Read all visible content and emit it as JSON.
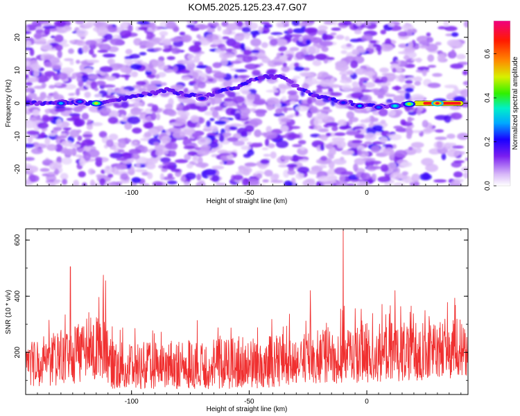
{
  "title": "KOM5.2025.125.23.47.G07",
  "chart_data": [
    {
      "type": "heatmap",
      "xlabel": "Height of straight line (km)",
      "ylabel": "Frequency (Hz)",
      "xlim": [
        -145,
        43
      ],
      "ylim": [
        -25,
        25
      ],
      "x_ticks": [
        -100,
        -50,
        0
      ],
      "y_ticks": [
        -20,
        -10,
        0,
        10,
        20
      ],
      "colorbar": {
        "label": "Normalized spectral amplitude",
        "range": [
          0.0,
          0.75
        ],
        "ticks": [
          0.0,
          0.2,
          0.4,
          0.6
        ]
      },
      "ridge": [
        {
          "x": -145,
          "y": 0.0
        },
        {
          "x": -130,
          "y": 0.3
        },
        {
          "x": -120,
          "y": 0.2
        },
        {
          "x": -112,
          "y": 0.0
        },
        {
          "x": -100,
          "y": 2.0
        },
        {
          "x": -85,
          "y": 4.0
        },
        {
          "x": -70,
          "y": 1.8
        },
        {
          "x": -55,
          "y": 5.0
        },
        {
          "x": -45,
          "y": 8.0
        },
        {
          "x": -35,
          "y": 8.0
        },
        {
          "x": -28,
          "y": 4.0
        },
        {
          "x": -20,
          "y": 2.0
        },
        {
          "x": -10,
          "y": 0.5
        },
        {
          "x": 0,
          "y": -0.8
        },
        {
          "x": 10,
          "y": -1.0
        },
        {
          "x": 20,
          "y": 0.0
        },
        {
          "x": 30,
          "y": 0.0
        },
        {
          "x": 41,
          "y": 0.0
        }
      ],
      "peaks": [
        {
          "x": -130,
          "y": 0.0,
          "amp": 0.3
        },
        {
          "x": -122,
          "y": 0.5,
          "amp": 0.25
        },
        {
          "x": -115,
          "y": 0.0,
          "amp": 0.5
        },
        {
          "x": -70,
          "y": 1.5,
          "amp": 0.22
        },
        {
          "x": -10,
          "y": 0.2,
          "amp": 0.22
        },
        {
          "x": -3,
          "y": -0.8,
          "amp": 0.28
        },
        {
          "x": 5,
          "y": -1.2,
          "amp": 0.25
        },
        {
          "x": 12,
          "y": -0.8,
          "amp": 0.35
        },
        {
          "x": 18,
          "y": -0.2,
          "amp": 0.48
        },
        {
          "x": 30,
          "y": 0.0,
          "amp": 0.7
        }
      ]
    },
    {
      "type": "line",
      "xlabel": "Height of straight line (km)",
      "ylabel": "SNR (10 * v/v)",
      "xlim": [
        -145,
        43
      ],
      "ylim": [
        50,
        640
      ],
      "x_ticks": [
        -100,
        -50,
        0
      ],
      "y_ticks": [
        200,
        400,
        600
      ],
      "color": "#f03030",
      "envelope": [
        {
          "x": -145,
          "lo": 80,
          "mid": 170,
          "hi": 260
        },
        {
          "x": -130,
          "lo": 80,
          "mid": 180,
          "hi": 300
        },
        {
          "x": -122,
          "lo": 90,
          "mid": 190,
          "hi": 330
        },
        {
          "x": -112,
          "lo": 100,
          "mid": 230,
          "hi": 380
        },
        {
          "x": -108,
          "lo": 70,
          "mid": 150,
          "hi": 260
        },
        {
          "x": -90,
          "lo": 70,
          "mid": 140,
          "hi": 260
        },
        {
          "x": -70,
          "lo": 70,
          "mid": 145,
          "hi": 280
        },
        {
          "x": -50,
          "lo": 70,
          "mid": 150,
          "hi": 280
        },
        {
          "x": -30,
          "lo": 80,
          "mid": 165,
          "hi": 300
        },
        {
          "x": -15,
          "lo": 90,
          "mid": 180,
          "hi": 320
        },
        {
          "x": 0,
          "lo": 90,
          "mid": 185,
          "hi": 330
        },
        {
          "x": 20,
          "lo": 100,
          "mid": 200,
          "hi": 340
        },
        {
          "x": 43,
          "lo": 110,
          "mid": 210,
          "hi": 360
        }
      ],
      "spikes": [
        {
          "x": -126,
          "y": 505
        },
        {
          "x": -112,
          "y": 475
        },
        {
          "x": -111,
          "y": 455
        },
        {
          "x": -10,
          "y": 640
        },
        {
          "x": -24,
          "y": 420
        },
        {
          "x": 12,
          "y": 420
        }
      ]
    }
  ]
}
